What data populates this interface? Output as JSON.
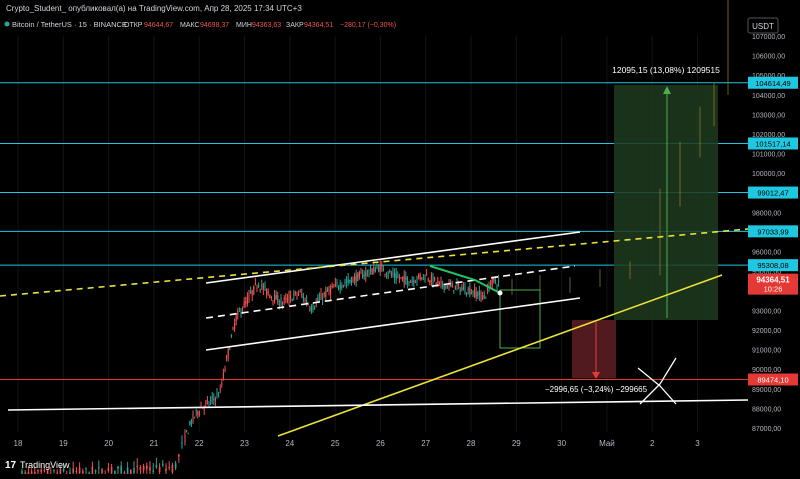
{
  "header": {
    "publisher": "Crypto_Student_ опубликовал(а) на TradingView.com, Апр 28, 2025 17:34 UTC+3",
    "symbol": "Bitcoin / TetherUS · 15 · BINANCE",
    "open_label": "ОТКР",
    "open_value": "94644,67",
    "high_label": "МАКС",
    "high_value": "94698,37",
    "low_label": "МИН",
    "low_value": "94363,63",
    "close_label": "ЗАКР",
    "close_value": "94364,51",
    "change": "−280,17 (−0,30%)",
    "currency": "USDT"
  },
  "footer": {
    "brand": "TradingView"
  },
  "colors": {
    "up": "#26a69a",
    "down": "#ef5350",
    "cyan": "#1ec8e0",
    "yellow": "#e8e23a",
    "green": "#22c55e",
    "white": "#ffffff",
    "red": "#e53935",
    "axis_text": "#b2b5be"
  },
  "chart_data": {
    "type": "candlestick",
    "x_ticks": [
      "18",
      "19",
      "20",
      "21",
      "22",
      "23",
      "24",
      "25",
      "26",
      "27",
      "28",
      "29",
      "30",
      "Май",
      "2",
      "3"
    ],
    "y_ticks": [
      "87000,00",
      "88000,00",
      "89000,00",
      "90000,00",
      "91000,00",
      "92000,00",
      "93000,00",
      "94000,00",
      "95000,00",
      "96000,00",
      "97000,00",
      "98000,00",
      "99000,00",
      "100000,00",
      "101000,00",
      "102000,00",
      "103000,00",
      "104000,00",
      "105000,00",
      "106000,00",
      "107000,00"
    ],
    "ylim": [
      86000,
      108000
    ],
    "horizontal_levels": [
      {
        "label": "104614,49",
        "value": 104614.49,
        "color": "#1ec8e0"
      },
      {
        "label": "101517,14",
        "value": 101517.14,
        "color": "#1ec8e0"
      },
      {
        "label": "99012,47",
        "value": 99012.47,
        "color": "#1ec8e0"
      },
      {
        "label": "97033,99",
        "value": 97033.99,
        "color": "#1ec8e0"
      },
      {
        "label": "95308,08",
        "value": 95308.08,
        "color": "#1ec8e0"
      },
      {
        "label": "89474,10",
        "value": 89474.1,
        "color": "#e53935"
      }
    ],
    "current_price": {
      "label": "94364,51",
      "countdown": "10:26",
      "value": 94364.51
    },
    "annotations": {
      "long_position": "12095,15 (13,08%) 1209515",
      "short_position": "−2996,65 (−3,24%) −299665"
    }
  }
}
